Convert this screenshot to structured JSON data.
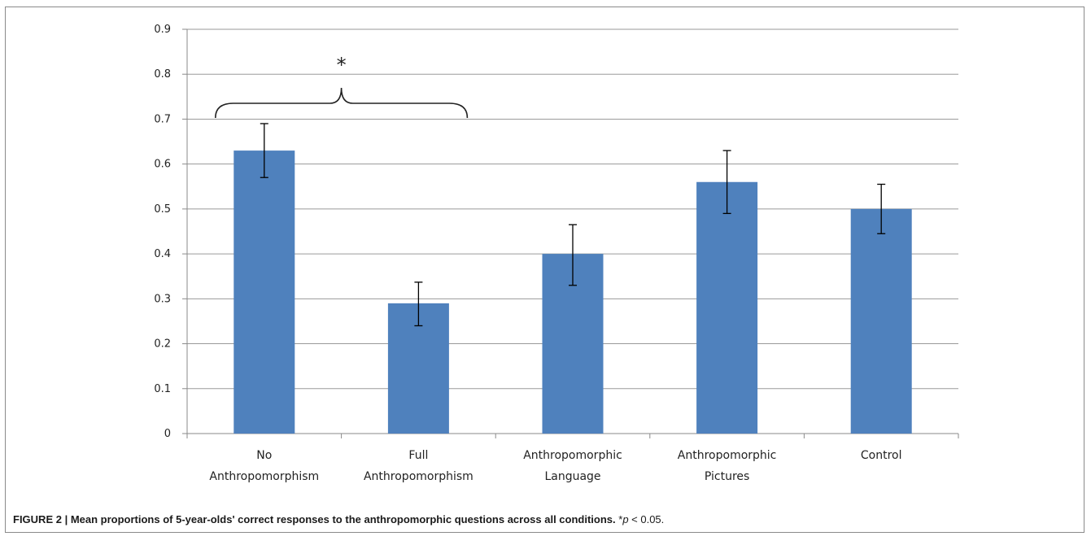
{
  "chart_data": {
    "type": "bar",
    "categories": [
      [
        "No",
        "Anthropomorphism"
      ],
      [
        "Full",
        "Anthropomorphism"
      ],
      [
        "Anthropomorphic",
        "Language"
      ],
      [
        "Anthropomorphic",
        "Pictures"
      ],
      [
        "Control"
      ]
    ],
    "values": [
      0.63,
      0.29,
      0.4,
      0.56,
      0.5
    ],
    "error_low": [
      0.57,
      0.24,
      0.33,
      0.49,
      0.445
    ],
    "error_high": [
      0.69,
      0.337,
      0.465,
      0.63,
      0.555
    ],
    "ylim": [
      0,
      0.9
    ],
    "yticks": [
      0,
      0.1,
      0.2,
      0.3,
      0.4,
      0.5,
      0.6,
      0.7,
      0.8,
      0.9
    ],
    "ytick_labels": [
      "0",
      "0.1",
      "0.2",
      "0.3",
      "0.4",
      "0.5",
      "0.6",
      "0.7",
      "0.8",
      "0.9"
    ],
    "grid": true,
    "bar_color": "#4f81bd",
    "significance": {
      "label": "*",
      "from_category": 0,
      "to_category": 1
    }
  },
  "caption": {
    "figure_label": "FIGURE 2 | Mean proportions of 5-year-olds' correct responses to the anthropomorphic questions across all conditions.",
    "note_prefix": " *",
    "note_p": "p",
    "note_suffix": " < 0.05."
  }
}
